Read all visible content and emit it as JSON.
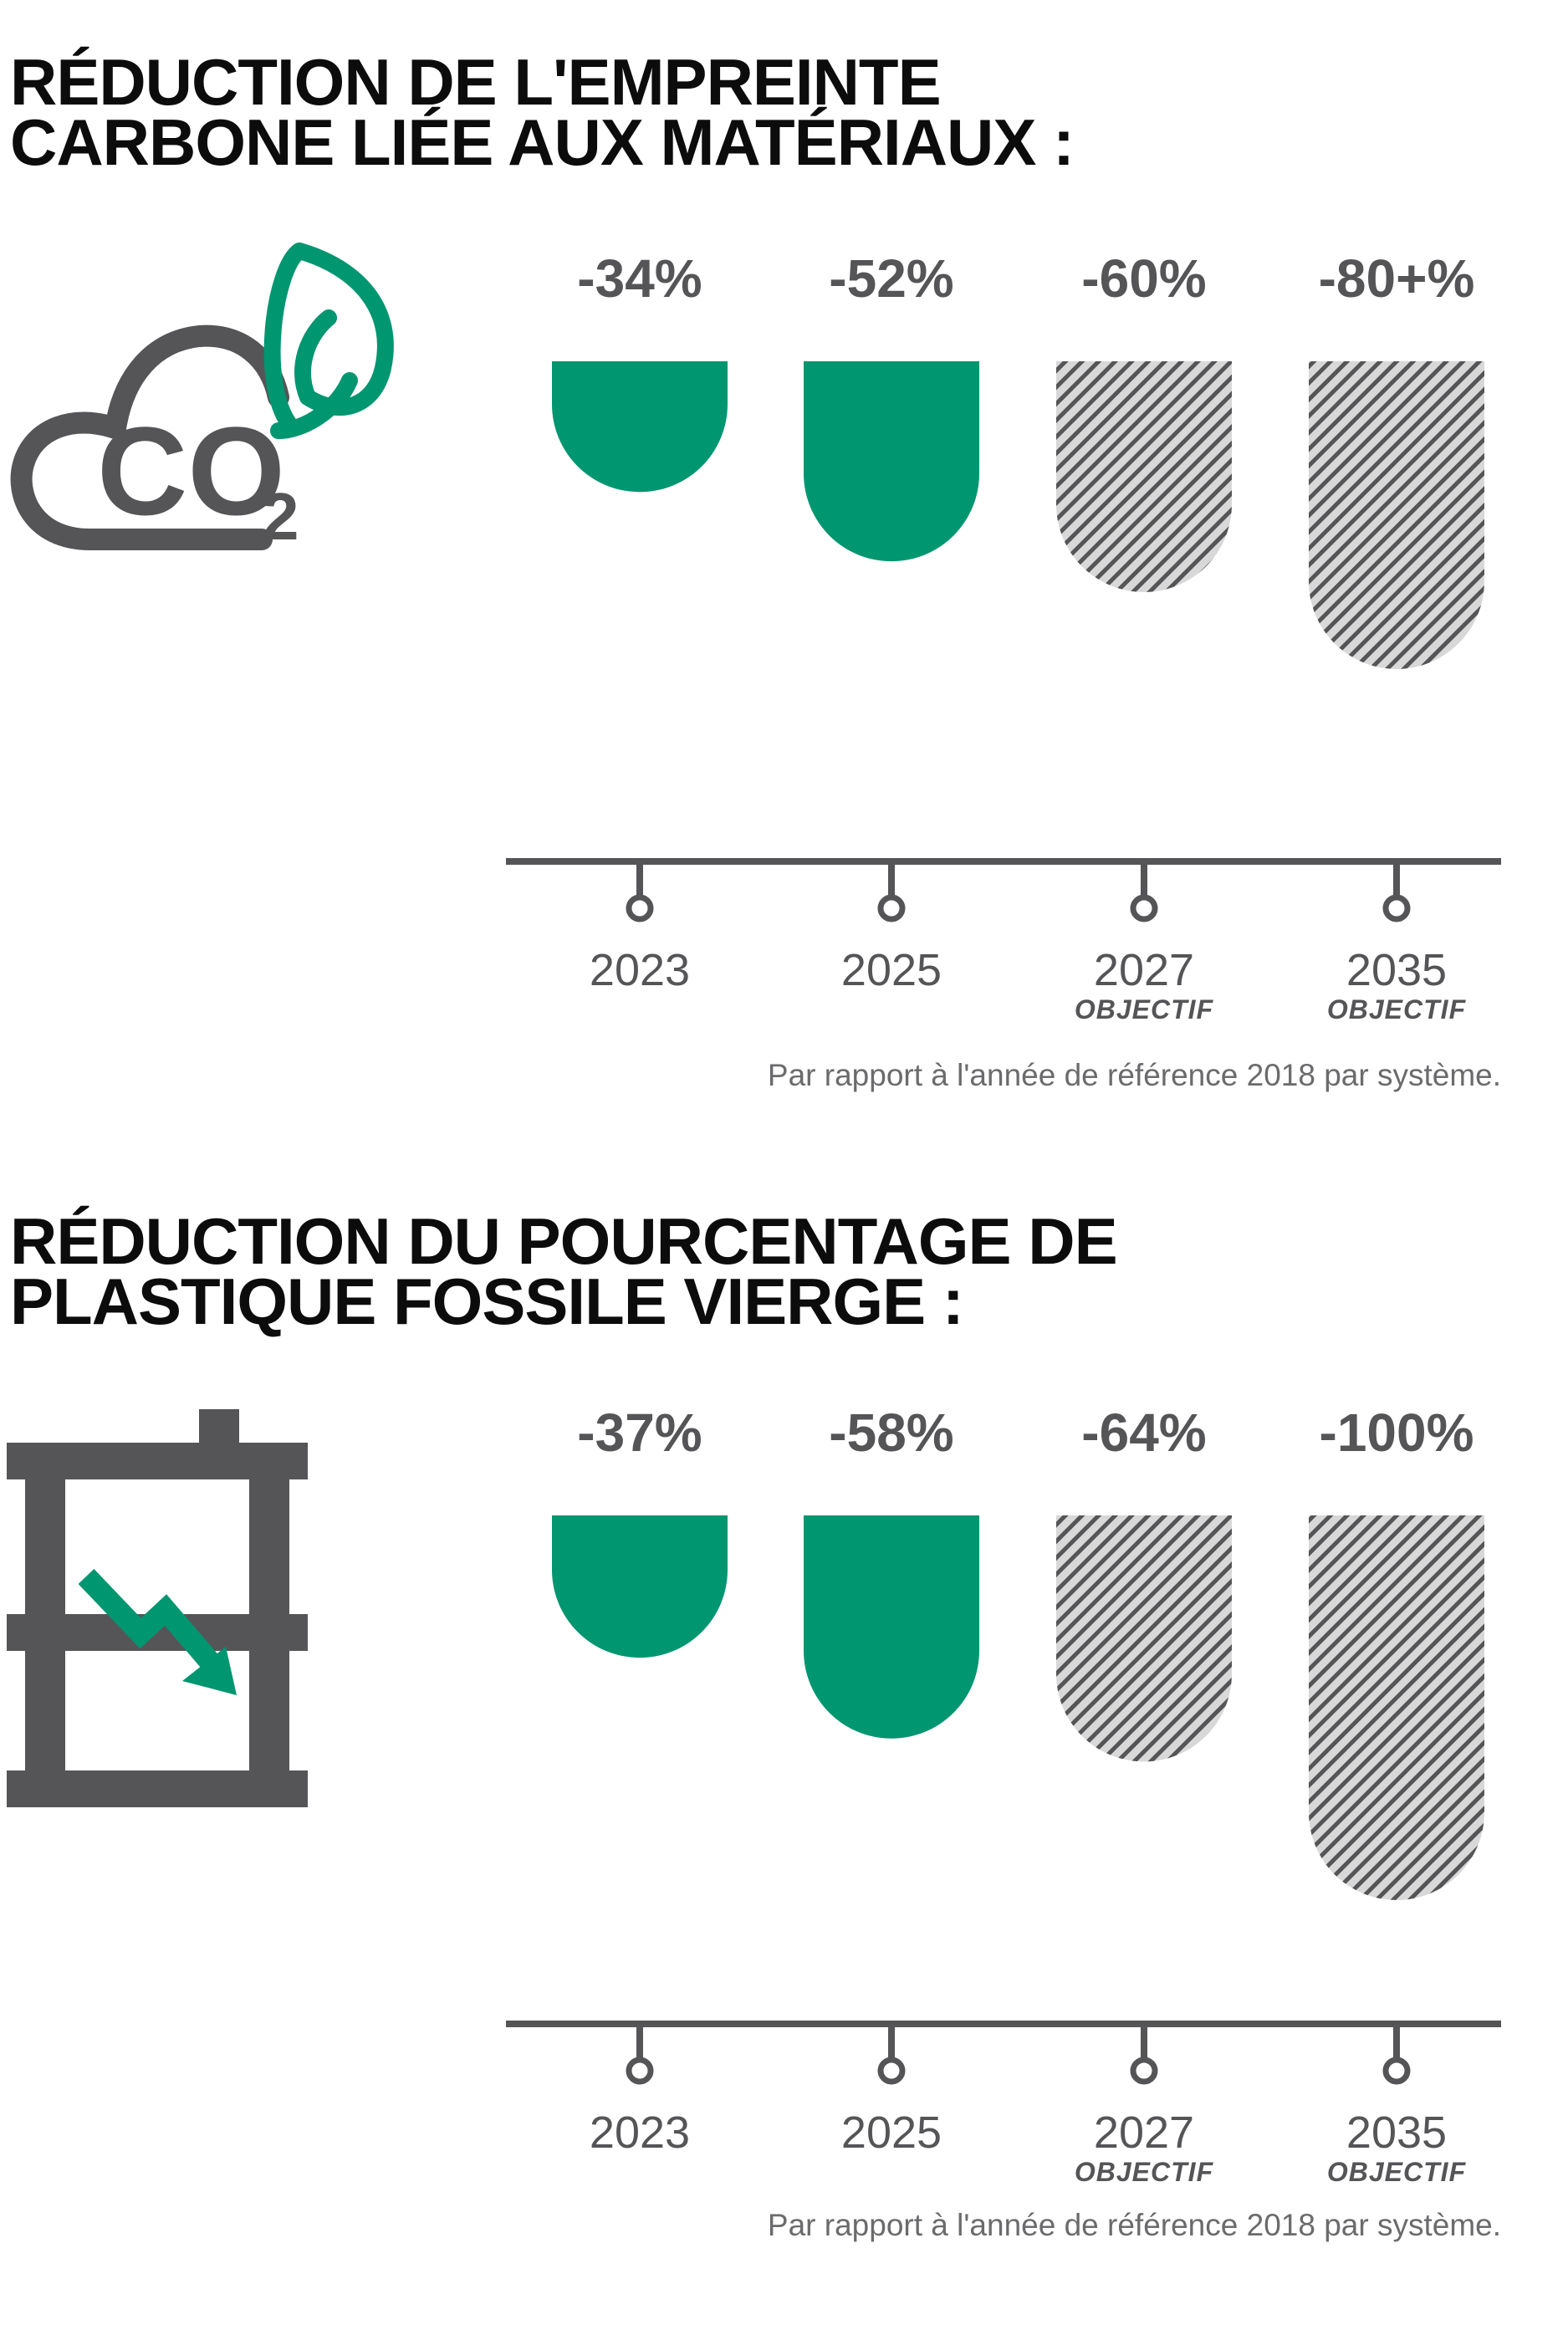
{
  "colors": {
    "achieved": "#009670",
    "target_hatch": "#555558",
    "target_bg": "#d8d8d8",
    "axis": "#555558",
    "leaf": "#009670"
  },
  "chart_data": [
    {
      "type": "bar",
      "title": "RÉDUCTION DE L'EMPREINTE CARBONE LIÉE AUX MATÉRIAUX :",
      "title_lines": [
        "RÉDUCTION DE L'EMPREINTE",
        "CARBONE LIÉE AUX MATÉRIAUX :"
      ],
      "categories": [
        "2023",
        "2025",
        "2027",
        "2035"
      ],
      "values": [
        -34,
        -52,
        -60,
        -80
      ],
      "value_labels": [
        "-34%",
        "-52%",
        "-60%",
        "-80+%"
      ],
      "sublabels": [
        "",
        "",
        "OBJECTIF",
        "OBJECTIF"
      ],
      "status": [
        "achieved",
        "achieved",
        "target",
        "target"
      ],
      "note": "Par rapport à l'année de référence 2018 par système.",
      "icon": "co2-cloud-leaf-icon"
    },
    {
      "type": "bar",
      "title": "RÉDUCTION DU POURCENTAGE DE PLASTIQUE FOSSILE VIERGE :",
      "title_lines": [
        "RÉDUCTION DU POURCENTAGE DE",
        "PLASTIQUE FOSSILE VIERGE :"
      ],
      "categories": [
        "2023",
        "2025",
        "2027",
        "2035"
      ],
      "values": [
        -37,
        -58,
        -64,
        -100
      ],
      "value_labels": [
        "-37%",
        "-58%",
        "-64%",
        "-100%"
      ],
      "sublabels": [
        "",
        "",
        "OBJECTIF",
        "OBJECTIF"
      ],
      "status": [
        "achieved",
        "achieved",
        "target",
        "target"
      ],
      "note": "Par rapport à l'année de référence 2018 par système.",
      "icon": "oil-barrel-down-arrow-icon"
    }
  ]
}
